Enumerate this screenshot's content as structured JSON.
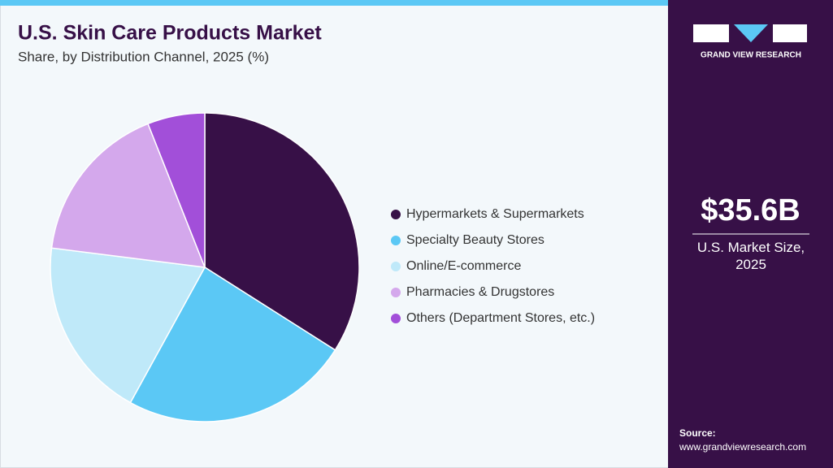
{
  "chart_data": {
    "type": "pie",
    "title": "U.S. Skin Care Products Market",
    "subtitle": "Share, by Distribution Channel, 2025 (%)",
    "categories": [
      "Hypermarkets & Supermarkets",
      "Specialty Beauty Stores",
      "Online/E-commerce",
      "Pharmacies & Drugstores",
      "Others (Department Stores, etc.)"
    ],
    "values": [
      34,
      24,
      19,
      17,
      6
    ],
    "colors": [
      "#371047",
      "#5bc8f5",
      "#bfe9f9",
      "#d4a8ec",
      "#a24fd9"
    ],
    "legend": "right"
  },
  "brand": "GRAND VIEW RESEARCH",
  "market_size": {
    "value": "$35.6B",
    "label": "U.S. Market Size, 2025"
  },
  "source": {
    "label": "Source:",
    "url": "www.grandviewresearch.com"
  }
}
